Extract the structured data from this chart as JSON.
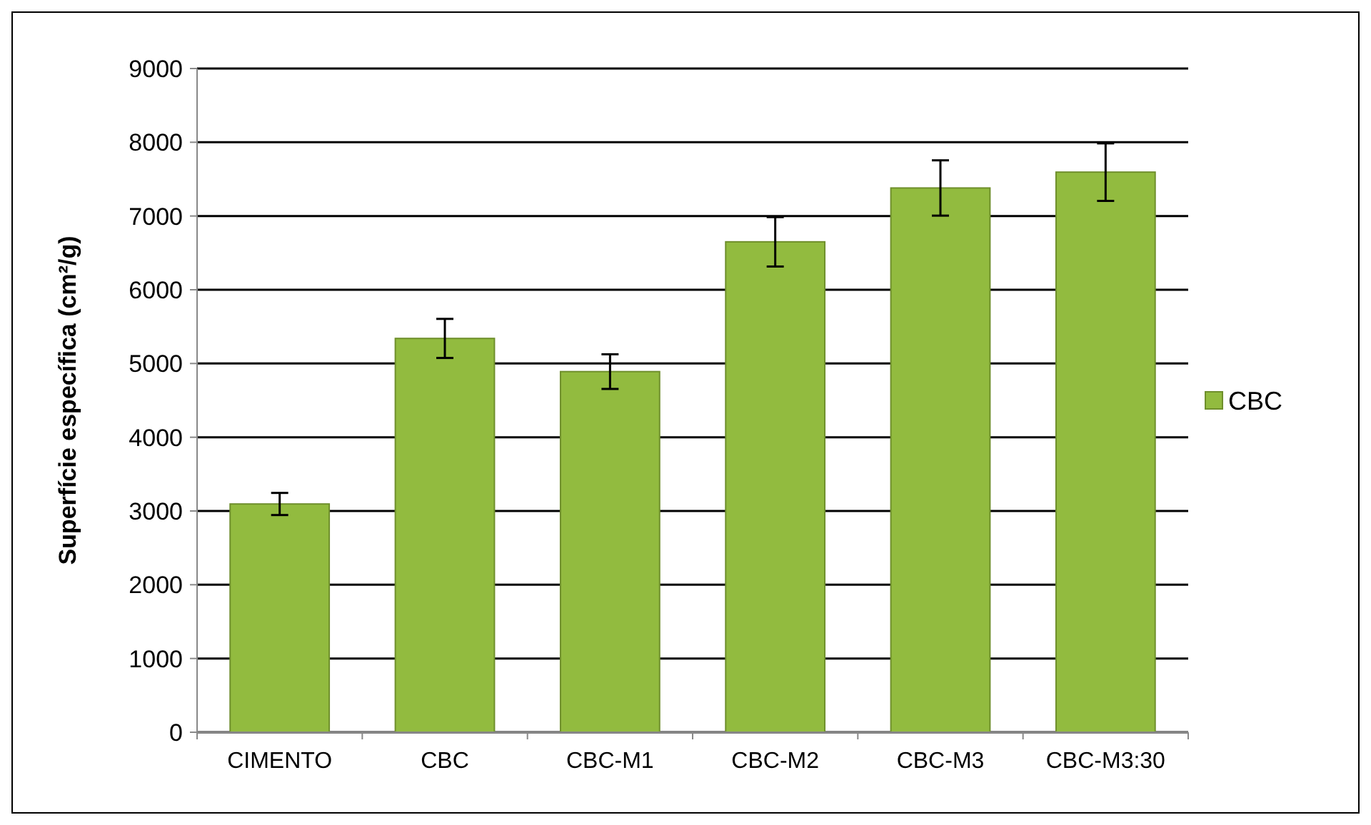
{
  "chart_data": {
    "type": "bar",
    "ylabel": "Superfície específica (cm²/g)",
    "categories": [
      "CIMENTO",
      "CBC",
      "CBC-M1",
      "CBC-M2",
      "CBC-M3",
      "CBC-M3:30"
    ],
    "series": [
      {
        "name": "CBC",
        "color": "#92bb3f",
        "values": [
          3095,
          5340,
          4890,
          6650,
          7380,
          7595
        ],
        "errors": [
          150,
          265,
          235,
          335,
          375,
          390
        ]
      }
    ],
    "ylim": [
      0,
      9000
    ],
    "yticks": [
      0,
      1000,
      2000,
      3000,
      4000,
      5000,
      6000,
      7000,
      8000,
      9000
    ],
    "grid": "y",
    "legend": "right"
  }
}
